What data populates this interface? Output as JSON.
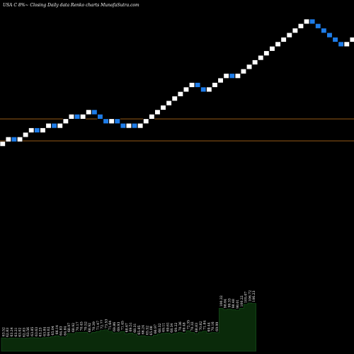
{
  "title": "USA C 8%~  Closing Daily data  Renko  charts MunafaSutra.com",
  "colors": {
    "background": "#000000",
    "brick_up": "#ffffff",
    "brick_down": "#1e7ce8",
    "brick_border": "#000000",
    "reference_line": "#c8781e",
    "volume_fill": "#0a2a0a",
    "volume_edge": "#15501a",
    "label": "#ffffff"
  },
  "chart_data": {
    "type": "renko",
    "bricks": [
      "up",
      "up",
      "down",
      "up",
      "up",
      "up",
      "down",
      "up",
      "up",
      "down",
      "up",
      "up",
      "up",
      "down",
      "up",
      "up",
      "down",
      "down",
      "down",
      "up",
      "down",
      "down",
      "up",
      "down",
      "up",
      "up",
      "up",
      "up",
      "up",
      "up",
      "up",
      "up",
      "up",
      "up",
      "down",
      "down",
      "up",
      "up",
      "up",
      "up",
      "down",
      "up",
      "up",
      "up",
      "up",
      "up",
      "up",
      "up",
      "up",
      "up",
      "up",
      "up",
      "up",
      "up",
      "down",
      "down",
      "down",
      "down",
      "down",
      "down",
      "up",
      "up"
    ],
    "reference_levels": [
      "upper",
      "lower"
    ],
    "volume_labels": [
      "63.52",
      "62.83",
      "63.24",
      "63.21",
      "63.02",
      "62.83",
      "63.56",
      "63.85",
      "63.63",
      "63.23",
      "63.84",
      "64.02",
      "65.04",
      "66.14",
      "64.83",
      "64.84",
      "68.97",
      "68.92",
      "70.17",
      "70.45",
      "70.52",
      "68.92",
      "70.39",
      "71.47",
      "72.77",
      "73.53",
      "71.64",
      "69.86",
      "69.93",
      "71.45",
      "68.67",
      "69.51",
      "68.31",
      "65.85",
      "66.24",
      "65.52",
      "65.08",
      "66.97",
      "68.32",
      "69.11",
      "69.61",
      "68.34",
      "69.22",
      "70.36",
      "69.48",
      "72.35",
      "70.32",
      "68.83",
      "70.82",
      "71.84",
      "69.44",
      "70.16",
      "69.99",
      "100.32",
      "98.64",
      "99.33",
      "98.48",
      "98.01",
      "100.22",
      "105.07",
      "106.72",
      "106.23"
    ]
  }
}
